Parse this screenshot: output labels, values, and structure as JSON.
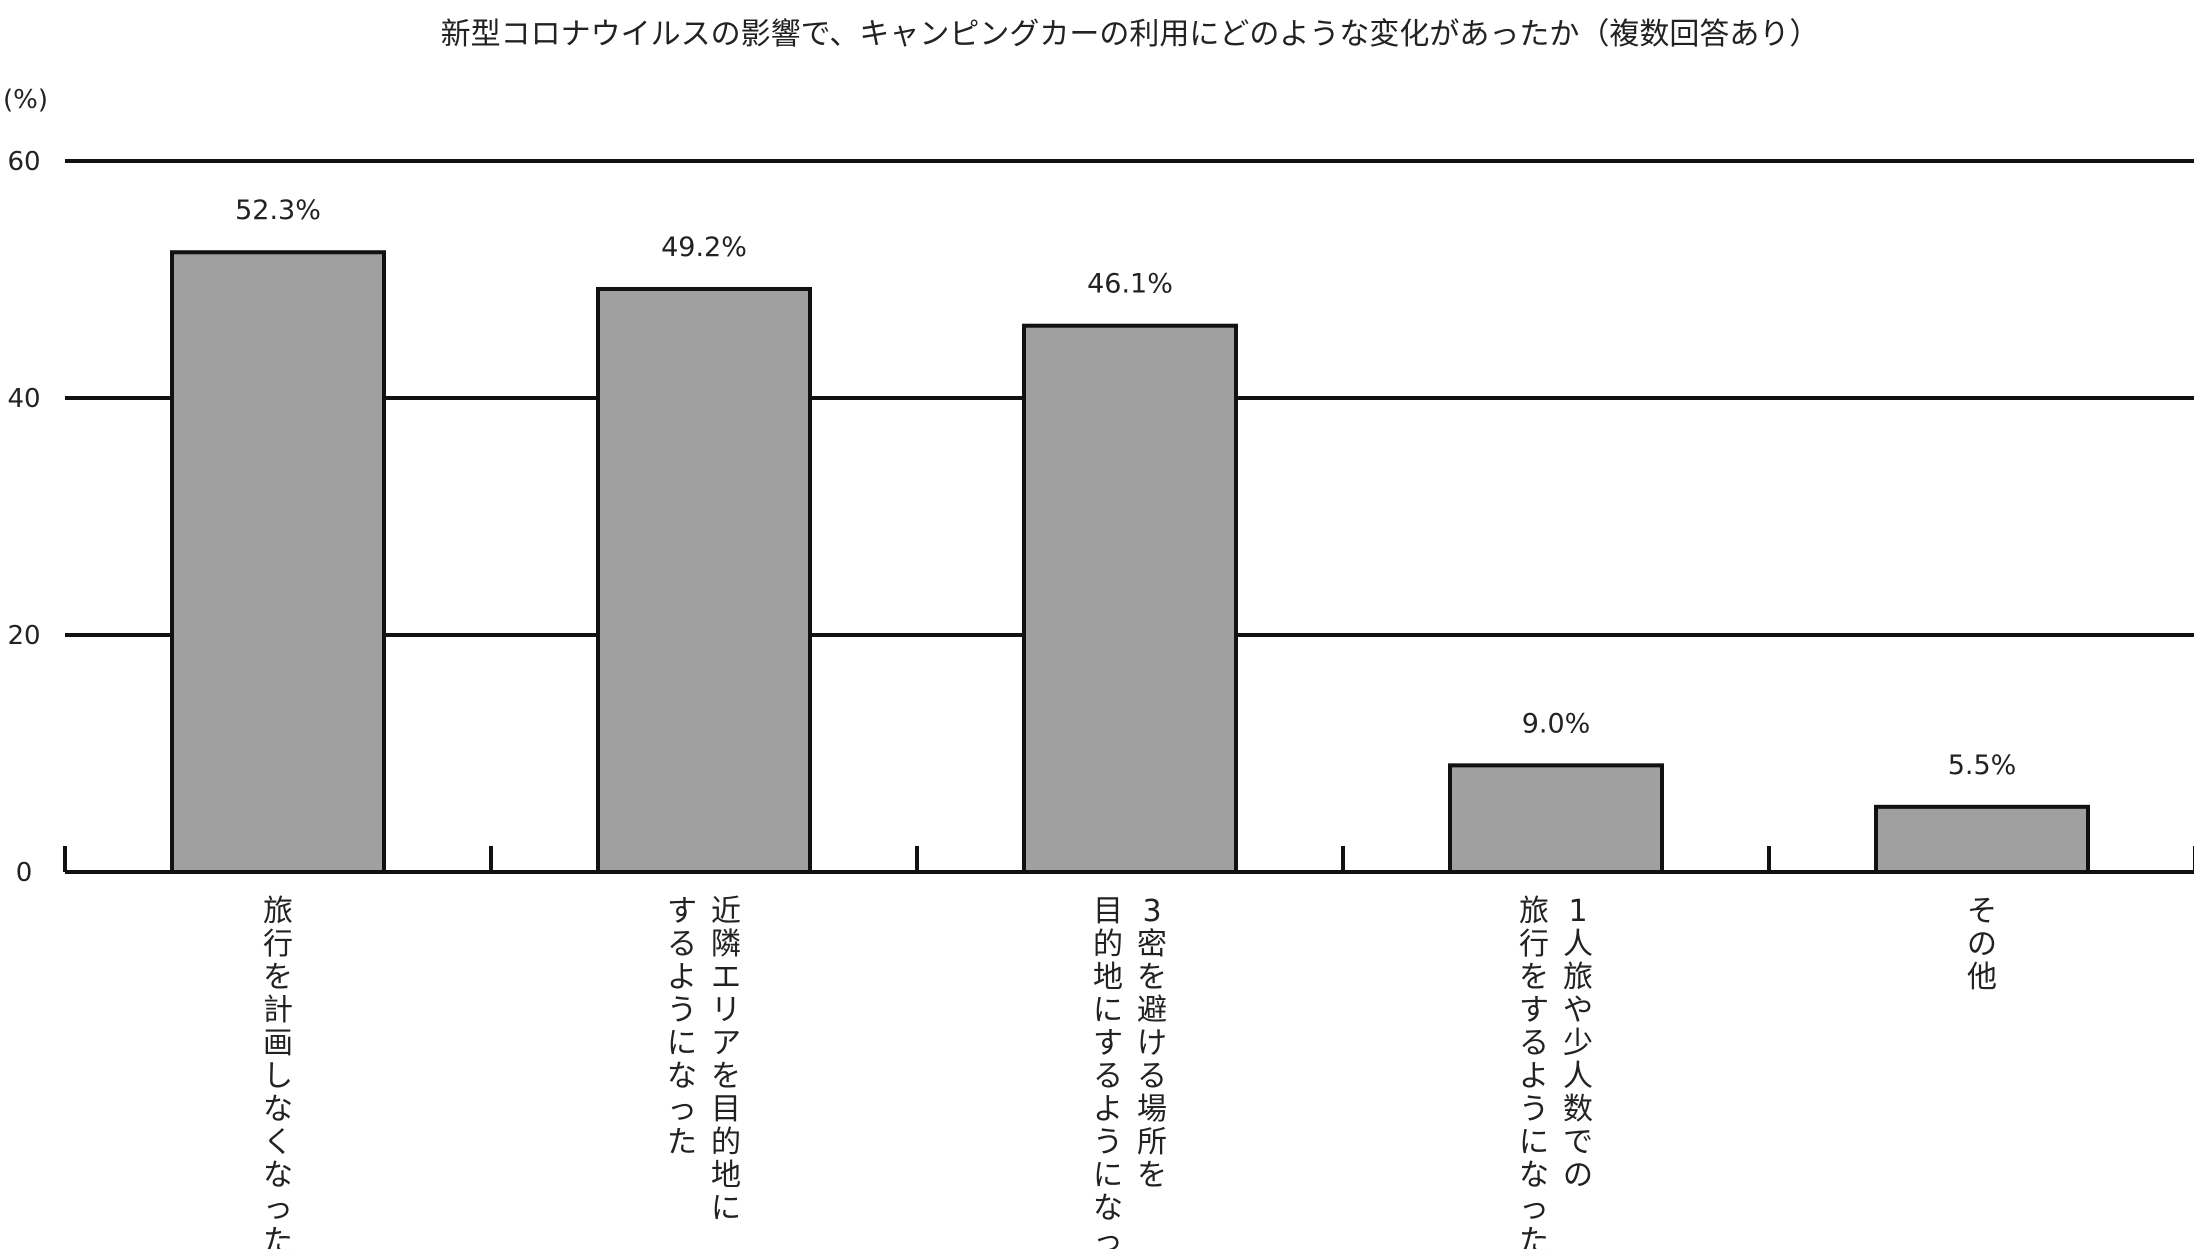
{
  "chart_data": {
    "type": "bar",
    "title": "新型コロナウイルスの影響で、キャンピングカーの利用にどのような変化があったか（複数回答あり）",
    "ylabel": "(%)",
    "ylim": [
      0,
      60
    ],
    "yticks": [
      0,
      20,
      40,
      60
    ],
    "grid": true,
    "bar_color": "#a0a0a0",
    "categories": [
      [
        "旅行を計画しなくなった"
      ],
      [
        "近隣エリアを目的地に",
        "するようになった"
      ],
      [
        "3密を避ける場所を",
        "目的地にするようになった"
      ],
      [
        "1人旅や少人数での",
        "旅行をするようになった"
      ],
      [
        "その他"
      ]
    ],
    "values": [
      52.3,
      49.2,
      46.1,
      9.0,
      5.5
    ],
    "value_labels": [
      "52.3%",
      "49.2%",
      "46.1%",
      "9.0%",
      "5.5%"
    ]
  }
}
